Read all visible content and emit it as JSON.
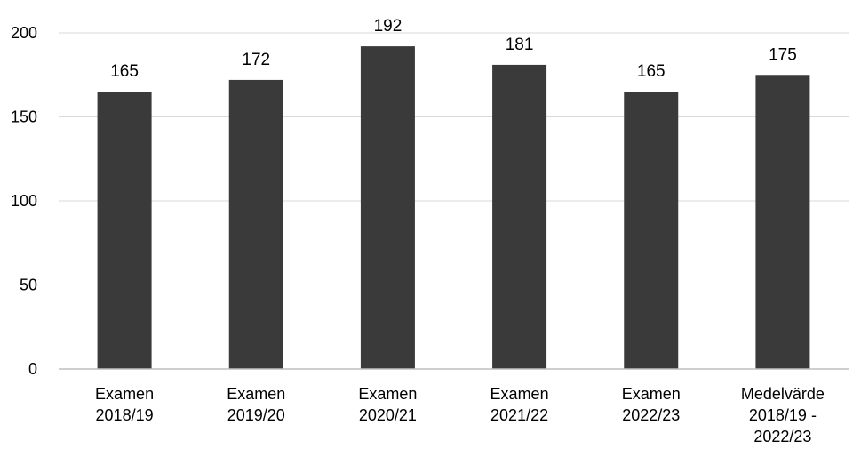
{
  "chart_data": {
    "type": "bar",
    "title": "",
    "xlabel": "",
    "ylabel": "",
    "categories": [
      [
        "Examen",
        "2018/19"
      ],
      [
        "Examen",
        "2019/20"
      ],
      [
        "Examen",
        "2020/21"
      ],
      [
        "Examen",
        "2021/22"
      ],
      [
        "Examen",
        "2022/23"
      ],
      [
        "Medelvärde",
        "2018/19 -",
        "2022/23"
      ]
    ],
    "values": [
      165,
      172,
      192,
      181,
      165,
      175
    ],
    "data_labels": [
      "165",
      "172",
      "192",
      "181",
      "165",
      "175"
    ],
    "ylim": [
      0,
      200
    ],
    "yticks": [
      0,
      50,
      100,
      150,
      200
    ],
    "ytick_labels": [
      "0",
      "50",
      "100",
      "150",
      "200"
    ],
    "grid": true,
    "legend": "none",
    "colors": {
      "bar": "#3a3a3a",
      "grid": "#d9d9d9",
      "axis": "#bfbfbf",
      "text": "#000000"
    }
  }
}
